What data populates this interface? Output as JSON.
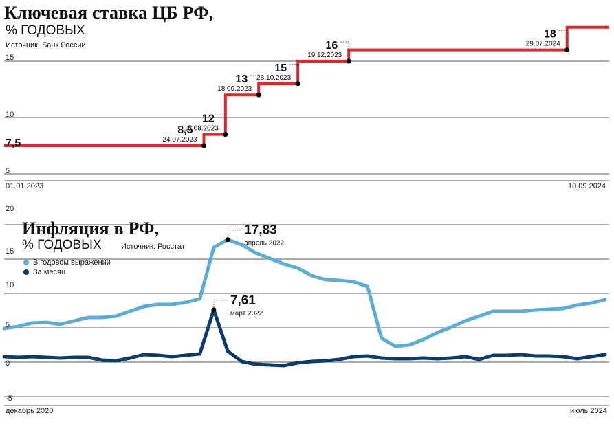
{
  "chart_data": [
    {
      "type": "line",
      "step": true,
      "title": "Ключевая ставка ЦБ РФ,",
      "subtitle": "% ГОДОВЫХ",
      "source": "Источник: Банк России",
      "color": "#e3262c",
      "ylim": [
        5,
        18
      ],
      "yticks": [
        "15",
        "10",
        "5"
      ],
      "xlabels": {
        "start": "01.01.2023",
        "end": "10.09.2024"
      },
      "grid": true,
      "points": [
        {
          "x": "2023-01-01",
          "y": 7.5
        },
        {
          "x": "2023-07-24",
          "y": 8.5
        },
        {
          "x": "2023-08-15",
          "y": 12
        },
        {
          "x": "2023-09-18",
          "y": 13
        },
        {
          "x": "2023-10-28",
          "y": 15
        },
        {
          "x": "2023-12-19",
          "y": 16
        },
        {
          "x": "2024-07-29",
          "y": 18
        },
        {
          "x": "2024-09-10",
          "y": 18
        }
      ],
      "annotations": [
        {
          "value": "7,5",
          "date": ""
        },
        {
          "value": "8,5",
          "date": "24.07.2023"
        },
        {
          "value": "12",
          "date": "15.08.2023"
        },
        {
          "value": "13",
          "date": "18.09.2023"
        },
        {
          "value": "15",
          "date": "28.10.2023"
        },
        {
          "value": "16",
          "date": "19.12.2023"
        },
        {
          "value": "18",
          "date": "29.07.2024"
        }
      ]
    },
    {
      "type": "line",
      "title": "Инфляция в РФ,",
      "subtitle": "% ГОДОВЫХ",
      "source": "Источник: Росстат",
      "ylim": [
        -5,
        20
      ],
      "yticks": [
        "20",
        "15",
        "10",
        "5",
        "0",
        "-5"
      ],
      "xlabels": {
        "start": "декабрь 2020",
        "end": "июль 2024"
      },
      "grid": true,
      "legend_position": "top-left",
      "series": [
        {
          "name": "В годовом выражении",
          "color": "#5aaed6",
          "values": [
            4.9,
            5.2,
            5.7,
            5.8,
            5.5,
            6.0,
            6.5,
            6.5,
            6.7,
            7.4,
            8.1,
            8.4,
            8.4,
            8.7,
            9.2,
            16.7,
            17.83,
            17.1,
            15.9,
            15.1,
            14.3,
            13.7,
            12.6,
            12.0,
            11.9,
            11.7,
            11.0,
            3.5,
            2.3,
            2.5,
            3.3,
            4.3,
            5.1,
            6.0,
            6.7,
            7.4,
            7.4,
            7.4,
            7.6,
            7.7,
            7.8,
            8.3,
            8.6,
            9.1
          ]
        },
        {
          "name": "За месяц",
          "color": "#0b3c6b",
          "values": [
            0.8,
            0.7,
            0.8,
            0.7,
            0.6,
            0.7,
            0.7,
            0.3,
            0.2,
            0.6,
            1.1,
            1.0,
            0.8,
            1.0,
            1.2,
            7.61,
            1.6,
            0.1,
            -0.3,
            -0.4,
            -0.5,
            -0.1,
            0.1,
            0.2,
            0.4,
            0.8,
            0.9,
            0.6,
            0.5,
            0.5,
            0.6,
            0.5,
            0.6,
            0.8,
            0.4,
            1.0,
            1.0,
            1.1,
            0.9,
            0.9,
            0.8,
            0.5,
            0.8,
            1.1
          ]
        }
      ],
      "annotations": [
        {
          "series": 0,
          "value": "17,83",
          "label": "апрель 2022"
        },
        {
          "series": 1,
          "value": "7,61",
          "label": "март 2022"
        }
      ]
    }
  ]
}
